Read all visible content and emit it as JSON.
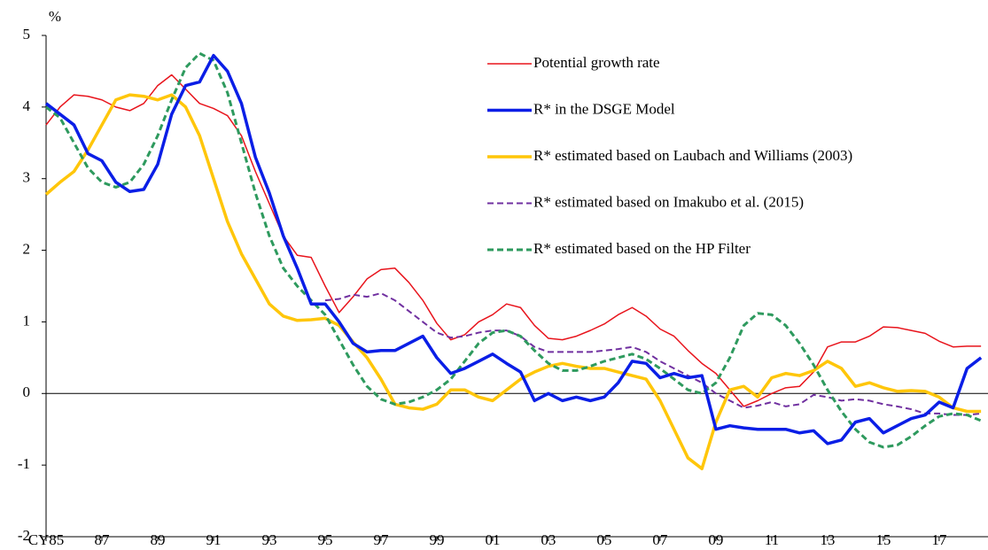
{
  "chart_data": {
    "type": "line",
    "y_label": "%",
    "x": [
      1985,
      1985.5,
      1986,
      1986.5,
      1987,
      1987.5,
      1988,
      1988.5,
      1989,
      1989.5,
      1990,
      1990.5,
      1991,
      1991.5,
      1992,
      1992.5,
      1993,
      1993.5,
      1994,
      1994.5,
      1995,
      1995.5,
      1996,
      1996.5,
      1997,
      1997.5,
      1998,
      1998.5,
      1999,
      1999.5,
      2000,
      2000.5,
      2001,
      2001.5,
      2002,
      2002.5,
      2003,
      2003.5,
      2004,
      2004.5,
      2005,
      2005.5,
      2006,
      2006.5,
      2007,
      2007.5,
      2008,
      2008.5,
      2009,
      2009.5,
      2010,
      2010.5,
      2011,
      2011.5,
      2012,
      2012.5,
      2013,
      2013.5,
      2014,
      2014.5,
      2015,
      2015.5,
      2016,
      2016.5,
      2017,
      2017.5,
      2018,
      2018.5
    ],
    "series": [
      {
        "name": "Potential growth rate",
        "color": "#e8141c",
        "line_width": 1.5,
        "dashed": false,
        "values": [
          3.75,
          4.0,
          4.17,
          4.15,
          4.1,
          4.0,
          3.95,
          4.05,
          4.3,
          4.45,
          4.25,
          4.05,
          3.98,
          3.88,
          3.6,
          3.1,
          2.65,
          2.2,
          1.93,
          1.9,
          1.5,
          1.13,
          1.35,
          1.6,
          1.73,
          1.75,
          1.55,
          1.3,
          0.98,
          0.75,
          0.82,
          1.0,
          1.1,
          1.25,
          1.2,
          0.95,
          0.77,
          0.75,
          0.8,
          0.88,
          0.97,
          1.1,
          1.2,
          1.08,
          0.9,
          0.8,
          0.6,
          0.42,
          0.28,
          0.05,
          -0.18,
          -0.1,
          0.0,
          0.08,
          0.1,
          0.3,
          0.65,
          0.72,
          0.72,
          0.8,
          0.93,
          0.92,
          0.88,
          0.84,
          0.73,
          0.65,
          0.66,
          0.66
        ]
      },
      {
        "name": "R* in the DSGE Model",
        "color": "#0a1ee6",
        "line_width": 3.5,
        "dashed": false,
        "values": [
          4.05,
          3.9,
          3.75,
          3.35,
          3.25,
          2.95,
          2.82,
          2.85,
          3.2,
          3.9,
          4.3,
          4.35,
          4.72,
          4.5,
          4.05,
          3.3,
          2.8,
          2.2,
          1.75,
          1.25,
          1.25,
          1.0,
          0.7,
          0.58,
          0.6,
          0.6,
          0.7,
          0.8,
          0.5,
          0.28,
          0.35,
          0.45,
          0.55,
          0.42,
          0.3,
          -0.1,
          0.0,
          -0.1,
          -0.05,
          -0.1,
          -0.05,
          0.15,
          0.45,
          0.42,
          0.22,
          0.28,
          0.22,
          0.25,
          -0.5,
          -0.45,
          -0.48,
          -0.5,
          -0.5,
          -0.5,
          -0.55,
          -0.52,
          -0.7,
          -0.65,
          -0.4,
          -0.35,
          -0.55,
          -0.45,
          -0.35,
          -0.3,
          -0.12,
          -0.2,
          0.35,
          0.5
        ]
      },
      {
        "name": "R* estimated based on Laubach and Williams (2003)",
        "color": "#ffc60a",
        "line_width": 3.5,
        "dashed": false,
        "values": [
          2.78,
          2.95,
          3.1,
          3.4,
          3.75,
          4.1,
          4.17,
          4.15,
          4.1,
          4.17,
          4.0,
          3.6,
          3.0,
          2.4,
          1.95,
          1.6,
          1.25,
          1.08,
          1.02,
          1.03,
          1.05,
          0.95,
          0.72,
          0.5,
          0.2,
          -0.15,
          -0.2,
          -0.22,
          -0.15,
          0.05,
          0.05,
          -0.05,
          -0.1,
          0.05,
          0.2,
          0.3,
          0.38,
          0.42,
          0.38,
          0.35,
          0.35,
          0.3,
          0.25,
          0.2,
          -0.1,
          -0.5,
          -0.9,
          -1.05,
          -0.4,
          0.05,
          0.1,
          -0.05,
          0.22,
          0.28,
          0.25,
          0.32,
          0.45,
          0.35,
          0.1,
          0.15,
          0.08,
          0.03,
          0.04,
          0.03,
          -0.05,
          -0.2,
          -0.25,
          -0.25
        ]
      },
      {
        "name": "R* estimated based on Imakubo et al. (2015)",
        "color": "#7030a0",
        "line_width": 2,
        "dashed": true,
        "values": [
          null,
          null,
          null,
          null,
          null,
          null,
          null,
          null,
          null,
          null,
          null,
          null,
          null,
          null,
          null,
          null,
          null,
          null,
          null,
          null,
          1.3,
          1.32,
          1.38,
          1.35,
          1.4,
          1.3,
          1.15,
          1.0,
          0.85,
          0.78,
          0.8,
          0.85,
          0.88,
          0.88,
          0.8,
          0.65,
          0.58,
          0.58,
          0.58,
          0.58,
          0.6,
          0.62,
          0.65,
          0.58,
          0.45,
          0.35,
          0.25,
          0.15,
          0.0,
          -0.1,
          -0.2,
          -0.17,
          -0.12,
          -0.18,
          -0.15,
          -0.02,
          -0.05,
          -0.1,
          -0.08,
          -0.1,
          -0.15,
          -0.18,
          -0.22,
          -0.28,
          -0.28,
          -0.3,
          -0.3,
          -0.28
        ]
      },
      {
        "name": "R* estimated based on the HP Filter",
        "color": "#2e9a5e",
        "line_width": 3,
        "dashed": true,
        "values": [
          4.0,
          3.85,
          3.5,
          3.15,
          2.95,
          2.88,
          2.95,
          3.2,
          3.6,
          4.1,
          4.55,
          4.75,
          4.65,
          4.2,
          3.5,
          2.8,
          2.2,
          1.75,
          1.5,
          1.3,
          1.1,
          0.75,
          0.4,
          0.1,
          -0.08,
          -0.15,
          -0.12,
          -0.05,
          0.05,
          0.2,
          0.45,
          0.7,
          0.85,
          0.88,
          0.8,
          0.6,
          0.42,
          0.32,
          0.32,
          0.38,
          0.45,
          0.5,
          0.55,
          0.48,
          0.35,
          0.2,
          0.05,
          0.0,
          0.15,
          0.5,
          0.95,
          1.12,
          1.1,
          0.95,
          0.7,
          0.4,
          0.05,
          -0.25,
          -0.5,
          -0.68,
          -0.75,
          -0.72,
          -0.6,
          -0.45,
          -0.32,
          -0.28,
          -0.3,
          -0.38
        ]
      }
    ],
    "xlim": [
      1985,
      2018.75
    ],
    "xticks": [
      {
        "value": 1985,
        "label": "CY85"
      },
      {
        "value": 1987,
        "label": "87"
      },
      {
        "value": 1989,
        "label": "89"
      },
      {
        "value": 1991,
        "label": "91"
      },
      {
        "value": 1993,
        "label": "93"
      },
      {
        "value": 1995,
        "label": "95"
      },
      {
        "value": 1997,
        "label": "97"
      },
      {
        "value": 1999,
        "label": "99"
      },
      {
        "value": 2001,
        "label": "01"
      },
      {
        "value": 2003,
        "label": "03"
      },
      {
        "value": 2005,
        "label": "05"
      },
      {
        "value": 2007,
        "label": "07"
      },
      {
        "value": 2009,
        "label": "09"
      },
      {
        "value": 2011,
        "label": "11"
      },
      {
        "value": 2013,
        "label": "13"
      },
      {
        "value": 2015,
        "label": "15"
      },
      {
        "value": 2017,
        "label": "17"
      }
    ],
    "ylim": [
      -2,
      5
    ],
    "yticks": [
      -2,
      -1,
      0,
      1,
      2,
      3,
      4,
      5
    ],
    "zero_line": true,
    "legend": "upper right"
  }
}
